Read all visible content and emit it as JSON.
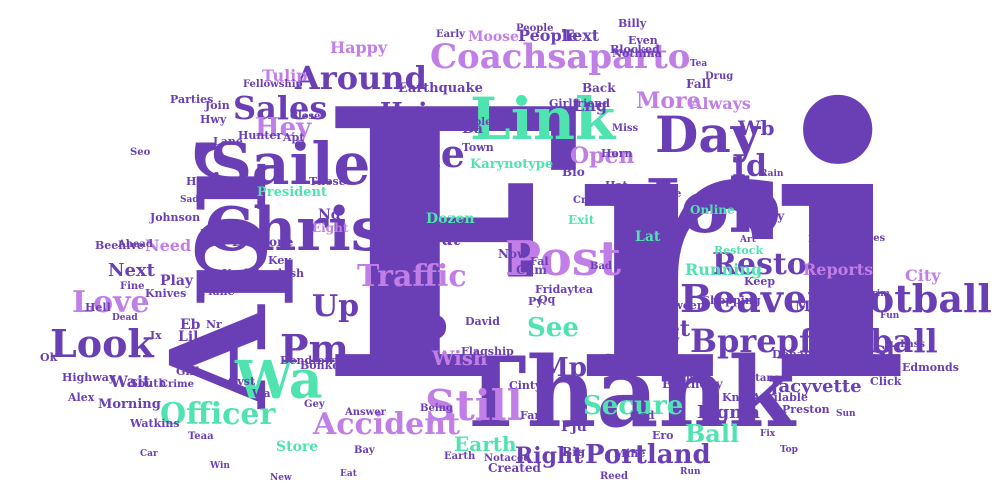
{
  "palette": {
    "green": "#4fe3b0",
    "violet": "#6a3fb5",
    "lilac": "#c07ee6",
    "pale": "#b9f0dc"
  },
  "words": [
    {
      "text": "Fri",
      "color": "violet"
    },
    {
      "text": "Apr",
      "color": "violet"
    },
    {
      "text": "Thank",
      "color": "violet"
    },
    {
      "text": "Link",
      "color": "green"
    },
    {
      "text": "Job",
      "color": "violet"
    },
    {
      "text": "Chris",
      "color": "violet"
    },
    {
      "text": "Sailer",
      "color": "violet"
    },
    {
      "text": "Beaverfootball",
      "color": "violet"
    },
    {
      "text": "Bprepfootball",
      "color": "violet"
    },
    {
      "text": "Coachsaparto",
      "color": "lilac"
    },
    {
      "text": "Day",
      "color": "violet"
    },
    {
      "text": "Post",
      "color": "lilac"
    },
    {
      "text": "Go",
      "color": "violet"
    },
    {
      "text": "Wa",
      "color": "green"
    },
    {
      "text": "Still",
      "color": "lilac"
    },
    {
      "text": "One",
      "color": "violet"
    },
    {
      "text": "Look",
      "color": "violet"
    },
    {
      "text": "Love",
      "color": "lilac"
    },
    {
      "text": "Pm",
      "color": "violet"
    },
    {
      "text": "Up",
      "color": "violet"
    },
    {
      "text": "Sales",
      "color": "violet"
    },
    {
      "text": "Around",
      "color": "violet"
    },
    {
      "text": "Restock",
      "color": "violet"
    },
    {
      "text": "Traffic",
      "color": "lilac"
    },
    {
      "text": "Accident",
      "color": "lilac"
    },
    {
      "text": "Officer",
      "color": "green"
    },
    {
      "text": "Secure",
      "color": "green"
    },
    {
      "text": "Hey",
      "color": "lilac"
    },
    {
      "text": "Hair",
      "color": "violet"
    },
    {
      "text": "Stop",
      "color": "violet"
    },
    {
      "text": "See",
      "color": "green"
    },
    {
      "text": "Mph",
      "color": "violet"
    },
    {
      "text": "Come",
      "color": "violet"
    },
    {
      "text": "Portland",
      "color": "violet"
    },
    {
      "text": "Right",
      "color": "violet"
    },
    {
      "text": "Ball",
      "color": "green"
    },
    {
      "text": "Last",
      "color": "violet"
    },
    {
      "text": "More",
      "color": "lilac"
    },
    {
      "text": "Open",
      "color": "lilac"
    },
    {
      "text": "Id",
      "color": "violet"
    },
    {
      "text": "Wb",
      "color": "violet"
    },
    {
      "text": "Rku",
      "color": "violet"
    },
    {
      "text": "Set",
      "color": "violet"
    },
    {
      "text": "Wish",
      "color": "lilac"
    },
    {
      "text": "Earth",
      "color": "green"
    },
    {
      "text": "Figma",
      "color": "violet"
    },
    {
      "text": "Jacyvette",
      "color": "violet"
    },
    {
      "text": "Reports",
      "color": "lilac"
    },
    {
      "text": "Running",
      "color": "green"
    },
    {
      "text": "Always",
      "color": "lilac"
    },
    {
      "text": "People",
      "color": "violet"
    },
    {
      "text": "Text",
      "color": "violet"
    },
    {
      "text": "Happy",
      "color": "lilac"
    },
    {
      "text": "Moose",
      "color": "lilac"
    },
    {
      "text": "Tulip",
      "color": "lilac"
    },
    {
      "text": "Need",
      "color": "lilac"
    },
    {
      "text": "Next",
      "color": "violet"
    },
    {
      "text": "Yo",
      "color": "violet"
    },
    {
      "text": "Eb",
      "color": "violet"
    },
    {
      "text": "Nd",
      "color": "violet"
    },
    {
      "text": "President",
      "color": "green"
    },
    {
      "text": "Eight",
      "color": "lilac"
    },
    {
      "text": "Alyknits",
      "color": "violet"
    },
    {
      "text": "Dozen",
      "color": "green"
    },
    {
      "text": "Karynotype",
      "color": "green"
    },
    {
      "text": "Lng",
      "color": "violet"
    },
    {
      "text": "Ba",
      "color": "violet"
    },
    {
      "text": "Earthquake",
      "color": "violet"
    },
    {
      "text": "Out",
      "color": "violet"
    },
    {
      "text": "Lat",
      "color": "green"
    },
    {
      "text": "Left",
      "color": "violet"
    },
    {
      "text": "Alert",
      "color": "violet"
    },
    {
      "text": "Wait",
      "color": "violet"
    },
    {
      "text": "Morning",
      "color": "violet"
    },
    {
      "text": "Karlebookish",
      "color": "violet"
    },
    {
      "text": "Play",
      "color": "violet"
    },
    {
      "text": "Store",
      "color": "green"
    },
    {
      "text": "Earthday",
      "color": "violet"
    },
    {
      "text": "Bio",
      "color": "violet"
    },
    {
      "text": "Fall",
      "color": "violet"
    },
    {
      "text": "Online",
      "color": "green"
    },
    {
      "text": "Username",
      "color": "violet"
    },
    {
      "text": "Town",
      "color": "violet"
    },
    {
      "text": "Shopping",
      "color": "violet"
    },
    {
      "text": "Between",
      "color": "violet"
    },
    {
      "text": "Much",
      "color": "violet"
    },
    {
      "text": "City",
      "color": "lilac"
    },
    {
      "text": "Lil",
      "color": "violet"
    },
    {
      "text": "Blair",
      "color": "violet"
    },
    {
      "text": "Now",
      "color": "violet"
    },
    {
      "text": "Cum",
      "color": "violet"
    },
    {
      "text": "Exit",
      "color": "green"
    },
    {
      "text": "Hat",
      "color": "violet"
    },
    {
      "text": "Key",
      "color": "violet"
    },
    {
      "text": "Knives",
      "color": "violet"
    },
    {
      "text": "Created",
      "color": "violet"
    },
    {
      "text": "Big",
      "color": "violet"
    },
    {
      "text": "Pju",
      "color": "violet"
    },
    {
      "text": "Everyone",
      "color": "violet"
    },
    {
      "text": "Girlfriend",
      "color": "violet"
    },
    {
      "text": "Back",
      "color": "violet"
    },
    {
      "text": "Blocked",
      "color": "violet"
    },
    {
      "text": "Drug",
      "color": "violet"
    },
    {
      "text": "Hunter",
      "color": "violet"
    },
    {
      "text": "Horn",
      "color": "violet"
    },
    {
      "text": "Flagship",
      "color": "violet"
    },
    {
      "text": "Fridaytea",
      "color": "violet"
    },
    {
      "text": "David",
      "color": "violet"
    },
    {
      "text": "Alex",
      "color": "violet"
    },
    {
      "text": "Dendtown",
      "color": "violet"
    },
    {
      "text": "Johnson",
      "color": "violet"
    },
    {
      "text": "Beehive",
      "color": "violet"
    },
    {
      "text": "Highway",
      "color": "violet"
    },
    {
      "text": "Preston",
      "color": "violet"
    },
    {
      "text": "Edmonds",
      "color": "violet"
    },
    {
      "text": "Click",
      "color": "violet"
    },
    {
      "text": "Donate",
      "color": "violet"
    },
    {
      "text": "Shoulder",
      "color": "violet"
    },
    {
      "text": "Answer",
      "color": "violet"
    },
    {
      "text": "Ahead",
      "color": "violet"
    },
    {
      "text": "Parties",
      "color": "violet"
    },
    {
      "text": "Join",
      "color": "violet"
    },
    {
      "text": "Lane",
      "color": "violet"
    },
    {
      "text": "Apt",
      "color": "violet"
    },
    {
      "text": "Those",
      "color": "violet"
    },
    {
      "text": "Samplers",
      "color": "violet"
    },
    {
      "text": "Even",
      "color": "violet"
    },
    {
      "text": "Billy",
      "color": "violet"
    },
    {
      "text": "Nothina",
      "color": "violet"
    },
    {
      "text": "Knots",
      "color": "violet"
    },
    {
      "text": "Available",
      "color": "violet"
    },
    {
      "text": "Restock",
      "color": "green"
    },
    {
      "text": "Girl",
      "color": "violet"
    },
    {
      "text": "Plane",
      "color": "violet"
    },
    {
      "text": "South",
      "color": "violet"
    },
    {
      "text": "Hell",
      "color": "violet"
    },
    {
      "text": "Watkins",
      "color": "violet"
    },
    {
      "text": "Being",
      "color": "violet"
    },
    {
      "text": "Cinty",
      "color": "violet"
    },
    {
      "text": "Ix",
      "color": "violet"
    },
    {
      "text": "Ok",
      "color": "violet"
    },
    {
      "text": "Nr",
      "color": "violet"
    },
    {
      "text": "Sta",
      "color": "violet"
    },
    {
      "text": "Gvst",
      "color": "violet"
    },
    {
      "text": "Bonkers",
      "color": "violet"
    },
    {
      "text": "Fal",
      "color": "violet"
    },
    {
      "text": "Far",
      "color": "violet"
    },
    {
      "text": "Mine",
      "color": "violet"
    },
    {
      "text": "God",
      "color": "violet"
    },
    {
      "text": "Ero",
      "color": "violet"
    },
    {
      "text": "Keep",
      "color": "violet"
    },
    {
      "text": "Py",
      "color": "violet"
    },
    {
      "text": "Qq",
      "color": "violet"
    },
    {
      "text": "Wy",
      "color": "violet"
    },
    {
      "text": "Hwy",
      "color": "violet"
    },
    {
      "text": "Hogs",
      "color": "violet"
    },
    {
      "text": "Wa",
      "color": "violet"
    },
    {
      "text": "Pdx",
      "color": "violet"
    },
    {
      "text": "Crew",
      "color": "violet"
    },
    {
      "text": "Tembet",
      "color": "violet"
    },
    {
      "text": "Stance",
      "color": "violet"
    },
    {
      "text": "Kaey",
      "color": "violet"
    },
    {
      "text": "Bay",
      "color": "violet"
    },
    {
      "text": "Notaced",
      "color": "violet"
    },
    {
      "text": "People",
      "color": "violet"
    },
    {
      "text": "Early",
      "color": "violet"
    },
    {
      "text": "Fellowship",
      "color": "violet"
    },
    {
      "text": "Earth",
      "color": "violet"
    },
    {
      "text": "Miss",
      "color": "violet"
    },
    {
      "text": "Close",
      "color": "violet"
    },
    {
      "text": "Gey",
      "color": "violet"
    },
    {
      "text": "Fine",
      "color": "violet"
    },
    {
      "text": "Before",
      "color": "violet"
    },
    {
      "text": "Crime",
      "color": "violet"
    },
    {
      "text": "Hanes",
      "color": "violet"
    },
    {
      "text": "Bad",
      "color": "violet"
    },
    {
      "text": "Pass",
      "color": "violet"
    },
    {
      "text": "Tour",
      "color": "violet"
    },
    {
      "text": "Reed",
      "color": "violet"
    },
    {
      "text": "Teaa",
      "color": "violet"
    },
    {
      "text": "Seo",
      "color": "violet"
    },
    {
      "text": "Home",
      "color": "violet"
    },
    {
      "text": "Trim",
      "color": "violet"
    },
    {
      "text": "Bot",
      "color": "violet"
    },
    {
      "text": "Fix",
      "color": "violet"
    },
    {
      "text": "Sad",
      "color": "violet"
    },
    {
      "text": "Dead",
      "color": "violet"
    },
    {
      "text": "Rain",
      "color": "violet"
    },
    {
      "text": "Fun",
      "color": "violet"
    },
    {
      "text": "Tea",
      "color": "violet"
    },
    {
      "text": "Art",
      "color": "violet"
    },
    {
      "text": "New",
      "color": "violet"
    },
    {
      "text": "Top",
      "color": "violet"
    },
    {
      "text": "Win",
      "color": "violet"
    },
    {
      "text": "Eat",
      "color": "violet"
    },
    {
      "text": "Run",
      "color": "violet"
    },
    {
      "text": "Sun",
      "color": "violet"
    },
    {
      "text": "Car",
      "color": "violet"
    }
  ]
}
